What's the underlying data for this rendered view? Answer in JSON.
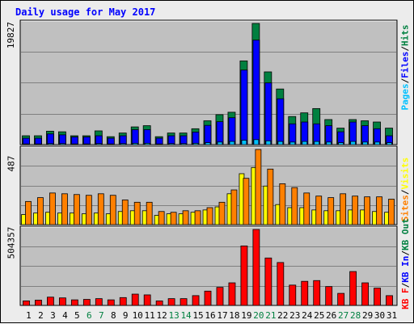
{
  "title": "Daily usage for May 2017",
  "colors": {
    "pages": "#00c0ff",
    "files": "#0000ff",
    "hits": "#008040",
    "visits": "#ffff00",
    "sites": "#ff8000",
    "kb": "#ff0000",
    "kb_in": "#0000ff",
    "kb_out": "#008040",
    "weekend_day": "#008040",
    "panel_bg": "#c0c0c0",
    "grid": "#808080"
  },
  "day_labels": [
    "1",
    "2",
    "3",
    "4",
    "5",
    "6",
    "7",
    "8",
    "9",
    "10",
    "11",
    "12",
    "13",
    "14",
    "15",
    "16",
    "17",
    "18",
    "19",
    "20",
    "21",
    "22",
    "23",
    "24",
    "25",
    "26",
    "27",
    "28",
    "29",
    "30",
    "31"
  ],
  "weekend_days": [
    6,
    7,
    13,
    14,
    20,
    21,
    27,
    28
  ],
  "chart_data": [
    {
      "type": "bar",
      "panel": "hits-files-pages",
      "max_label": "19827",
      "ylim": [
        0,
        19827
      ],
      "legend": [
        {
          "label": "Pages",
          "color": "#00c0ff"
        },
        {
          "label": "Files",
          "color": "#0000ff"
        },
        {
          "label": "Hits",
          "color": "#008040"
        }
      ],
      "series": [
        {
          "name": "Hits",
          "values": [
            1450,
            1450,
            2200,
            2100,
            1450,
            1450,
            2250,
            1300,
            1900,
            2900,
            3100,
            1300,
            1900,
            1900,
            2600,
            3900,
            4900,
            5300,
            13700,
            19827,
            11900,
            9100,
            4600,
            5200,
            5900,
            4100,
            2700,
            4100,
            3900,
            3700,
            2700
          ]
        },
        {
          "name": "Files",
          "values": [
            1050,
            1050,
            1750,
            1600,
            1250,
            1250,
            1450,
            1050,
            1450,
            2450,
            2450,
            1050,
            1450,
            1450,
            2050,
            3150,
            3750,
            4400,
            12200,
            17100,
            10100,
            7500,
            3400,
            3700,
            3400,
            3100,
            2100,
            3700,
            3100,
            2600,
            1450
          ]
        },
        {
          "name": "Pages",
          "values": [
            110,
            110,
            160,
            160,
            110,
            110,
            160,
            110,
            160,
            220,
            220,
            110,
            160,
            160,
            220,
            320,
            420,
            520,
            720,
            820,
            620,
            520,
            420,
            520,
            520,
            420,
            320,
            520,
            420,
            420,
            320
          ]
        }
      ]
    },
    {
      "type": "bar",
      "panel": "visits-sites",
      "max_label": "487",
      "ylim": [
        0,
        487
      ],
      "legend": [
        {
          "label": "Visits",
          "color": "#ffff00"
        },
        {
          "label": "Sites",
          "color": "#ff8000"
        }
      ],
      "series": [
        {
          "name": "Visits",
          "values": [
            65,
            75,
            80,
            75,
            75,
            70,
            75,
            70,
            85,
            90,
            90,
            60,
            70,
            70,
            80,
            95,
            115,
            200,
            330,
            370,
            250,
            130,
            110,
            110,
            95,
            90,
            90,
            95,
            95,
            85,
            80
          ]
        },
        {
          "name": "Sites",
          "values": [
            150,
            175,
            205,
            200,
            195,
            190,
            200,
            190,
            160,
            145,
            145,
            85,
            80,
            90,
            90,
            110,
            145,
            225,
            300,
            487,
            360,
            265,
            240,
            205,
            185,
            175,
            200,
            185,
            180,
            180,
            165
          ]
        }
      ]
    },
    {
      "type": "bar",
      "panel": "kb",
      "max_label": "504357",
      "ylim": [
        0,
        504357
      ],
      "legend": [
        {
          "label": "KB F",
          "color": "#ff0000"
        },
        {
          "label": "KB In",
          "color": "#0000ff"
        },
        {
          "label": "KB Out",
          "color": "#008040"
        }
      ],
      "series": [
        {
          "name": "KB F",
          "values": [
            30000,
            35000,
            55000,
            50000,
            37000,
            40000,
            45000,
            37000,
            52000,
            75000,
            70000,
            30000,
            45000,
            45000,
            65000,
            95000,
            120000,
            150000,
            395000,
            504357,
            315000,
            285000,
            135000,
            160000,
            165000,
            125000,
            80000,
            225000,
            150000,
            115000,
            65000
          ]
        }
      ]
    }
  ]
}
